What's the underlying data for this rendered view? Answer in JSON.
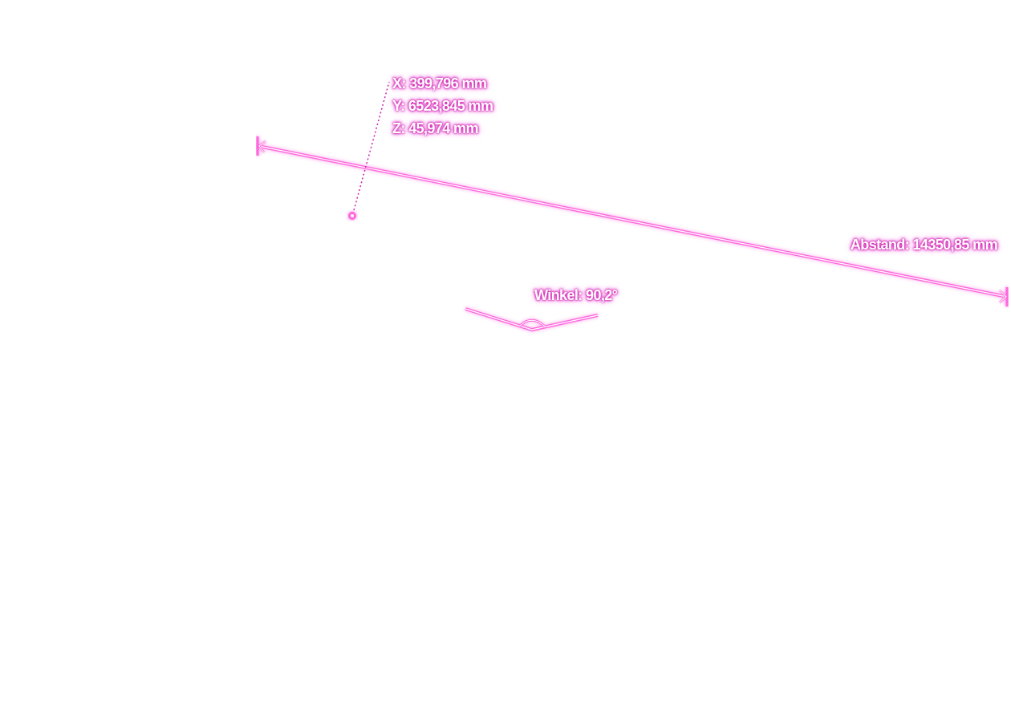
{
  "point": {
    "x_label": "X: 399,796 mm",
    "y_label": "Y: 6523,845 mm",
    "z_label": "Z: 45,974 mm"
  },
  "distance": {
    "label": "Abstand: 14350,85 mm"
  },
  "angle": {
    "label": "Winkel: 90,2°"
  },
  "colors": {
    "accent": "#ff66dd",
    "glow": "#d020b0",
    "text": "#ffffff",
    "background": "#ffffff"
  }
}
